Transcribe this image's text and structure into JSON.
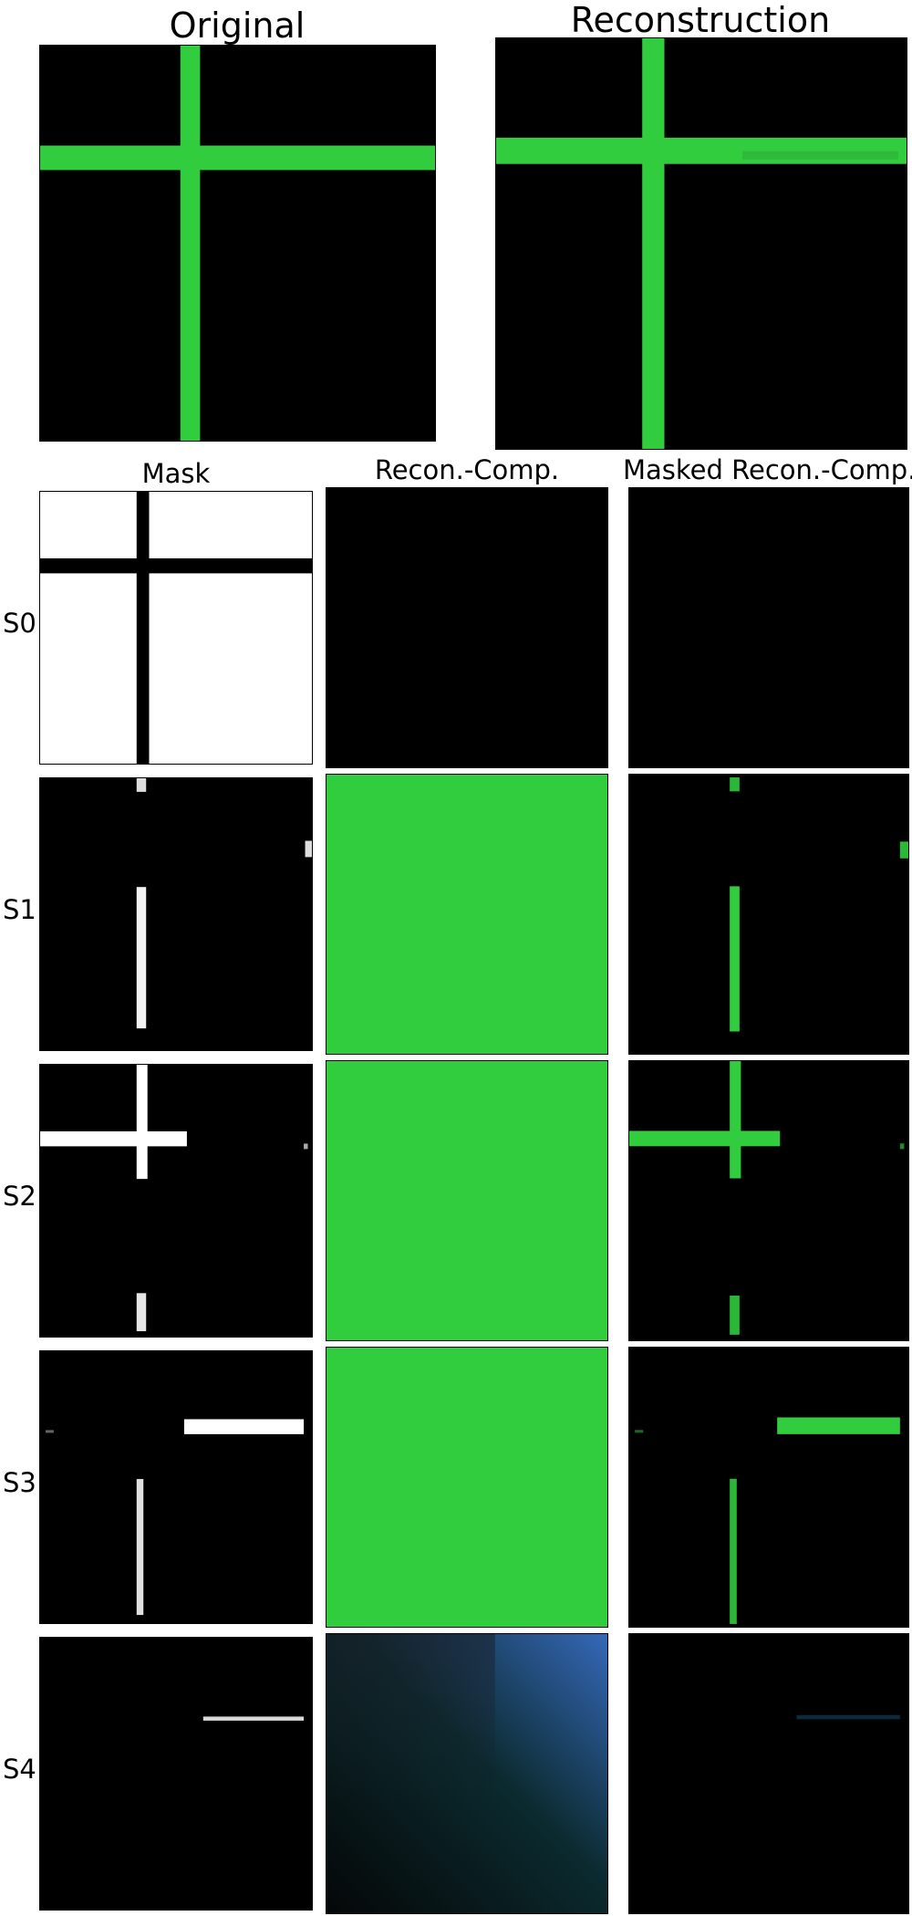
{
  "figure": {
    "titles": {
      "original": "Original",
      "reconstruction": "Reconstruction"
    },
    "column_headers": [
      "Mask",
      "Recon.-Comp.",
      "Masked Recon.-Comp."
    ],
    "rows": [
      {
        "label": "S0"
      },
      {
        "label": "S1"
      },
      {
        "label": "S2"
      },
      {
        "label": "S3"
      },
      {
        "label": "S4"
      }
    ]
  },
  "colors": {
    "green": "#32cd3f",
    "white": "#ffffff",
    "black": "#000000",
    "s4_gradient": [
      "#3568b8",
      "#0b2a2f",
      "#1a1c24",
      "#050707"
    ]
  }
}
